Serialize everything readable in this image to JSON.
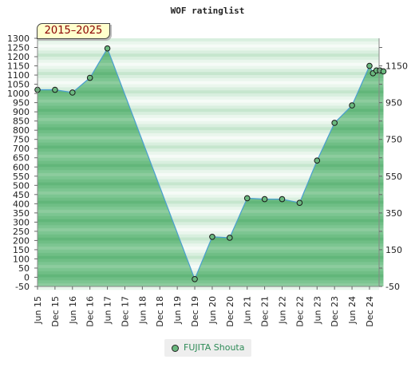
{
  "chart_data": {
    "type": "area",
    "title": "WOF ratinglist",
    "period_label": "2015–2025",
    "categories": [
      "Jun 15",
      "Dec 15",
      "Jun 16",
      "Dec 16",
      "Jun 17",
      "Dec 17",
      "Jun 18",
      "Dec 18",
      "Jun 19",
      "Dec 19",
      "Jun 20",
      "Dec 20",
      "Jun 21",
      "Dec 21",
      "Jun 22",
      "Dec 22",
      "Jun 23",
      "Dec 23",
      "Jun 24",
      "Dec 24"
    ],
    "series": [
      {
        "name": "FUJITA Shouta",
        "color": "#6ab87e",
        "points": [
          {
            "x": 0,
            "y": 1020
          },
          {
            "x": 1,
            "y": 1020
          },
          {
            "x": 2,
            "y": 1005
          },
          {
            "x": 3,
            "y": 1085
          },
          {
            "x": 4,
            "y": 1245
          },
          {
            "x": 9,
            "y": -10
          },
          {
            "x": 10,
            "y": 220
          },
          {
            "x": 11,
            "y": 215
          },
          {
            "x": 12,
            "y": 430
          },
          {
            "x": 13,
            "y": 425
          },
          {
            "x": 14,
            "y": 425
          },
          {
            "x": 15,
            "y": 405
          },
          {
            "x": 16,
            "y": 635
          },
          {
            "x": 17,
            "y": 840
          },
          {
            "x": 18,
            "y": 935
          },
          {
            "x": 19,
            "y": 1150
          },
          {
            "x": 19.2,
            "y": 1110
          },
          {
            "x": 19.4,
            "y": 1125
          },
          {
            "x": 19.6,
            "y": 1125
          },
          {
            "x": 19.8,
            "y": 1120
          }
        ]
      }
    ],
    "y_left": {
      "min": -50,
      "max": 1300,
      "step": 50,
      "ticks": [
        "1300",
        "1250",
        "1200",
        "1150",
        "1100",
        "1050",
        "1000",
        "950",
        "900",
        "850",
        "800",
        "750",
        "700",
        "650",
        "600",
        "550",
        "500",
        "450",
        "400",
        "350",
        "300",
        "250",
        "200",
        "150",
        "100",
        "50",
        "0",
        "-50"
      ]
    },
    "y_right": {
      "ticks": [
        {
          "value": 1150,
          "label": "1150"
        },
        {
          "value": 950,
          "label": "950"
        },
        {
          "value": 750,
          "label": "750"
        },
        {
          "value": 550,
          "label": "550"
        },
        {
          "value": 350,
          "label": "350"
        },
        {
          "value": 150,
          "label": "150"
        },
        {
          "value": -50,
          "label": "-50"
        }
      ]
    },
    "legend_position": "bottom-center",
    "grid": true
  }
}
